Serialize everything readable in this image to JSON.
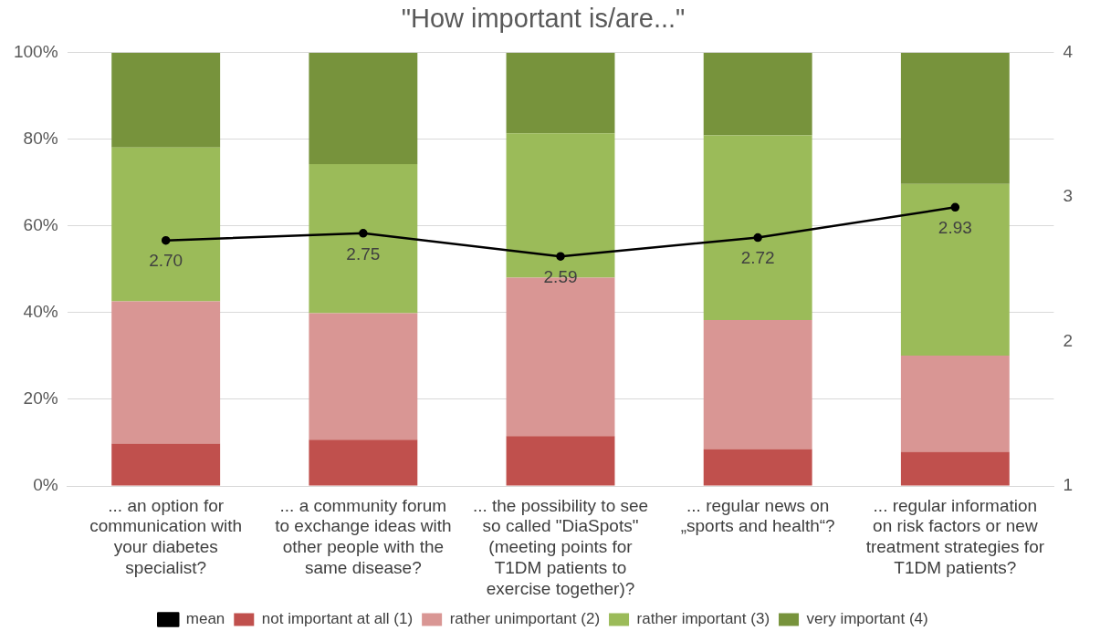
{
  "chart_data": {
    "type": "bar",
    "title": "\"How important is/are...\"",
    "stacked": true,
    "grid": "y",
    "legend": "bottom",
    "categories": [
      "... an option for communication with your diabetes specialist?",
      "... a community forum to exchange ideas with other people with the same disease?",
      "... the possibility to see so called \"DiaSpots\" (meeting points for T1DM patients to exercise together)?",
      "... regular news on „sports and health“?",
      "... regular information on risk factors or new treatment strategies for T1DM patients?"
    ],
    "series": [
      {
        "name": "not important at all (1)",
        "color": "#c0504d",
        "values": [
          9.8,
          10.7,
          11.5,
          8.5,
          7.9
        ]
      },
      {
        "name": "rather unimportant (2)",
        "color": "#d99694",
        "values": [
          32.8,
          29.2,
          36.6,
          29.8,
          22.2
        ]
      },
      {
        "name": "rather important (3)",
        "color": "#9bbb59",
        "values": [
          35.5,
          34.4,
          33.3,
          42.6,
          39.6
        ]
      },
      {
        "name": "very important (4)",
        "color": "#77933c",
        "values": [
          21.9,
          25.7,
          18.6,
          19.1,
          30.3
        ]
      },
      {
        "name": "mean",
        "type": "line",
        "axis": "y2",
        "color": "#000000",
        "marker": "circle",
        "values": [
          2.7,
          2.75,
          2.59,
          2.72,
          2.93
        ],
        "value_labels": [
          "2.70",
          "2.75",
          "2.59",
          "2.72",
          "2.93"
        ]
      }
    ],
    "ylim": [
      0,
      100
    ],
    "yticks": [
      {
        "value": 0,
        "label": "0%"
      },
      {
        "value": 20,
        "label": "20%"
      },
      {
        "value": 40,
        "label": "40%"
      },
      {
        "value": 60,
        "label": "60%"
      },
      {
        "value": 80,
        "label": "80%"
      },
      {
        "value": 100,
        "label": "100%"
      }
    ],
    "y2lim": [
      1,
      4
    ],
    "y2ticks": [
      1,
      2,
      3,
      4
    ]
  }
}
